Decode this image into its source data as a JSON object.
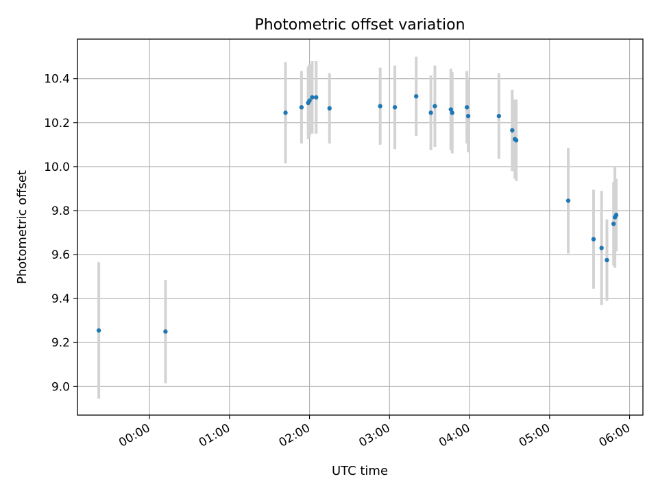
{
  "chart_data": {
    "type": "scatter",
    "title": "Photometric offset variation",
    "xlabel": "UTC time",
    "ylabel": "Photometric offset",
    "x_axis_kind": "time",
    "xlim": [
      "23:06",
      "06:10"
    ],
    "ylim": [
      8.87,
      10.58
    ],
    "x_ticks": [
      "00:00",
      "01:00",
      "02:00",
      "03:00",
      "04:00",
      "05:00",
      "06:00"
    ],
    "y_ticks": [
      9.0,
      9.2,
      9.4,
      9.6,
      9.8,
      10.0,
      10.2,
      10.4
    ],
    "y_tick_labels": [
      "9.0",
      "9.2",
      "9.4",
      "9.6",
      "9.8",
      "10.0",
      "10.2",
      "10.4"
    ],
    "grid": true,
    "marker_color": "#1f77b4",
    "errorbar_color": "#d3d3d3",
    "points": [
      {
        "x": "23:22",
        "y": 9.255,
        "err": 0.31
      },
      {
        "x": "00:12",
        "y": 9.25,
        "err": 0.235
      },
      {
        "x": "01:42",
        "y": 10.245,
        "err": 0.23
      },
      {
        "x": "01:54",
        "y": 10.27,
        "err": 0.165
      },
      {
        "x": "01:59",
        "y": 10.29,
        "err": 0.165
      },
      {
        "x": "02:00",
        "y": 10.3,
        "err": 0.165
      },
      {
        "x": "02:02",
        "y": 10.315,
        "err": 0.165
      },
      {
        "x": "02:05",
        "y": 10.315,
        "err": 0.165
      },
      {
        "x": "02:15",
        "y": 10.265,
        "err": 0.16
      },
      {
        "x": "02:53",
        "y": 10.275,
        "err": 0.175
      },
      {
        "x": "03:04",
        "y": 10.27,
        "err": 0.19
      },
      {
        "x": "03:20",
        "y": 10.32,
        "err": 0.18
      },
      {
        "x": "03:31",
        "y": 10.245,
        "err": 0.17
      },
      {
        "x": "03:34",
        "y": 10.275,
        "err": 0.185
      },
      {
        "x": "03:46",
        "y": 10.26,
        "err": 0.185
      },
      {
        "x": "03:47",
        "y": 10.245,
        "err": 0.185
      },
      {
        "x": "03:58",
        "y": 10.27,
        "err": 0.165
      },
      {
        "x": "03:59",
        "y": 10.23,
        "err": 0.165
      },
      {
        "x": "04:22",
        "y": 10.23,
        "err": 0.195
      },
      {
        "x": "04:32",
        "y": 10.165,
        "err": 0.185
      },
      {
        "x": "04:34",
        "y": 10.125,
        "err": 0.18
      },
      {
        "x": "04:35",
        "y": 10.12,
        "err": 0.185
      },
      {
        "x": "05:14",
        "y": 9.845,
        "err": 0.24
      },
      {
        "x": "05:33",
        "y": 9.67,
        "err": 0.225
      },
      {
        "x": "05:39",
        "y": 9.63,
        "err": 0.26
      },
      {
        "x": "05:43",
        "y": 9.575,
        "err": 0.185
      },
      {
        "x": "05:48",
        "y": 9.74,
        "err": 0.19
      },
      {
        "x": "05:49",
        "y": 9.77,
        "err": 0.23
      },
      {
        "x": "05:50",
        "y": 9.78,
        "err": 0.165
      }
    ]
  }
}
